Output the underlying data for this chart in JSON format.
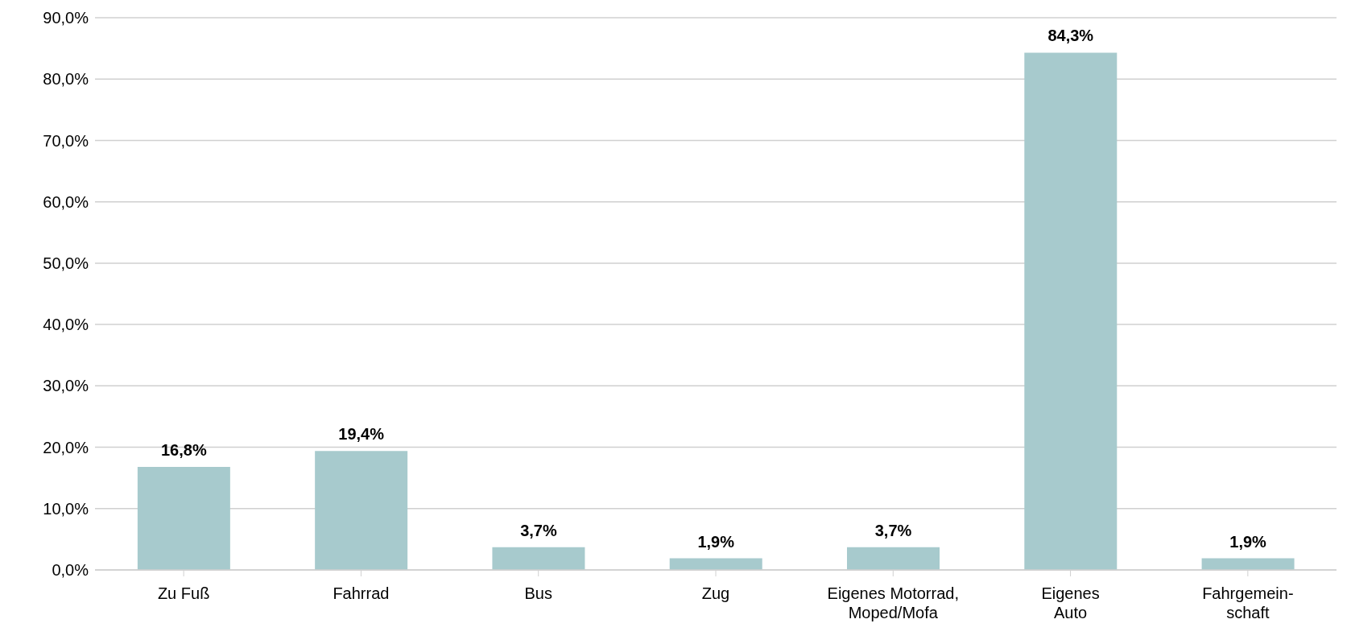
{
  "chart_data": {
    "type": "bar",
    "categories": [
      "Zu Fuß",
      "Fahrrad",
      "Bus",
      "Zug",
      "Eigenes Motorrad,\nMoped/Mofa",
      "Eigenes\nAuto",
      "Fahrgemein-\nschaft"
    ],
    "values": [
      16.8,
      19.4,
      3.7,
      1.9,
      3.7,
      84.3,
      1.9
    ],
    "value_labels": [
      "16,8%",
      "19,4%",
      "3,7%",
      "1,9%",
      "3,7%",
      "84,3%",
      "1,9%"
    ],
    "color": "#a7cacd",
    "ylim": [
      0,
      90
    ],
    "yticks": [
      {
        "value": 0,
        "label": "0,0%"
      },
      {
        "value": 10,
        "label": "10,0%"
      },
      {
        "value": 20,
        "label": "20,0%"
      },
      {
        "value": 30,
        "label": "30,0%"
      },
      {
        "value": 40,
        "label": "40,0%"
      },
      {
        "value": 50,
        "label": "50,0%"
      },
      {
        "value": 60,
        "label": "60,0%"
      },
      {
        "value": 70,
        "label": "70,0%"
      },
      {
        "value": 80,
        "label": "80,0%"
      },
      {
        "value": 90,
        "label": "90,0%"
      }
    ],
    "grid": "y"
  }
}
